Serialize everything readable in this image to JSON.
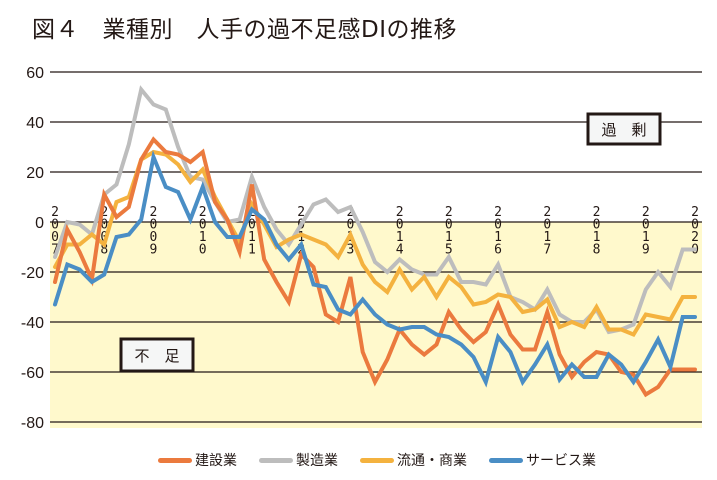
{
  "title": "図４　業種別　人手の過不足感DIの推移",
  "chart_data": {
    "type": "line",
    "title": "図４　業種別　人手の過不足感DIの推移",
    "xlabel": "",
    "ylabel": "",
    "ylim": [
      -80,
      60
    ],
    "yticks": [
      60,
      40,
      20,
      0,
      -20,
      -40,
      -60,
      -80
    ],
    "grid": true,
    "frequency": "quarterly",
    "x_start": "2007Q1",
    "x_end": "2020Q1",
    "year_labels": [
      "2007",
      "2008",
      "2009",
      "2010",
      "2011",
      "2012",
      "2013",
      "2014",
      "2015",
      "2016",
      "2017",
      "2018",
      "2019",
      "2020"
    ],
    "annotations": [
      {
        "text": "過　剰",
        "region": "positive",
        "position": "upper-right"
      },
      {
        "text": "不　足",
        "region": "negative",
        "position": "lower-left"
      }
    ],
    "shaded_region": {
      "from": -80,
      "to": 0,
      "color": "#fff9cc"
    },
    "legend_position": "bottom",
    "series": [
      {
        "name": "建設業",
        "color": "#eb7a3e",
        "values": [
          -24,
          -3,
          -12,
          -23,
          11,
          2,
          6,
          25,
          33,
          28,
          27,
          24,
          28,
          8,
          1,
          -12,
          15,
          -15,
          -24,
          -32,
          -13,
          -18,
          -37,
          -40,
          -22,
          -52,
          -64,
          -55,
          -43,
          -49,
          -53,
          -49,
          -36,
          -43,
          -48,
          -44,
          -33,
          -45,
          -51,
          -51,
          -36,
          -53,
          -62,
          -56,
          -52,
          -53,
          -60,
          -61,
          -69,
          -66,
          -59,
          -59,
          -59
        ]
      },
      {
        "name": "製造業",
        "color": "#bdbdbd",
        "values": [
          -14,
          0,
          -1,
          -5,
          11,
          15,
          31,
          53,
          47,
          45,
          30,
          18,
          17,
          8,
          0,
          1,
          18,
          6,
          -3,
          -9,
          -1,
          7,
          9,
          4,
          6,
          -4,
          -16,
          -20,
          -15,
          -19,
          -21,
          -21,
          -14,
          -24,
          -24,
          -25,
          -17,
          -30,
          -32,
          -35,
          -27,
          -37,
          -40,
          -40,
          -35,
          -44,
          -43,
          -41,
          -27,
          -20,
          -26,
          -11,
          -11
        ]
      },
      {
        "name": "流通・商業",
        "color": "#f4b23f",
        "values": [
          -18,
          -9,
          -9,
          -5,
          -9,
          8,
          10,
          25,
          28,
          27,
          23,
          16,
          21,
          10,
          1,
          -8,
          7,
          -1,
          -10,
          -7,
          -5,
          -7,
          -9,
          -14,
          -5,
          -17,
          -24,
          -28,
          -19,
          -27,
          -22,
          -30,
          -22,
          -26,
          -33,
          -32,
          -29,
          -30,
          -36,
          -35,
          -31,
          -42,
          -40,
          -42,
          -34,
          -43,
          -43,
          -45,
          -37,
          -38,
          -39,
          -30,
          -30
        ]
      },
      {
        "name": "サービス業",
        "color": "#4a8ec5",
        "values": [
          -33,
          -17,
          -19,
          -24,
          -21,
          -6,
          -5,
          1,
          26,
          14,
          12,
          1,
          14,
          0,
          -6,
          -6,
          5,
          1,
          -9,
          -15,
          -9,
          -25,
          -26,
          -35,
          -37,
          -31,
          -37,
          -41,
          -43,
          -42,
          -42,
          -45,
          -46,
          -49,
          -54,
          -64,
          -46,
          -52,
          -64,
          -57,
          -49,
          -63,
          -57,
          -62,
          -62,
          -53,
          -57,
          -64,
          -56,
          -47,
          -58,
          -38,
          -38
        ]
      }
    ]
  },
  "legend": {
    "items": [
      {
        "label": "建設業",
        "color": "#eb7a3e"
      },
      {
        "label": "製造業",
        "color": "#bdbdbd"
      },
      {
        "label": "流通・商業",
        "color": "#f4b23f"
      },
      {
        "label": "サービス業",
        "color": "#4a8ec5"
      }
    ]
  }
}
